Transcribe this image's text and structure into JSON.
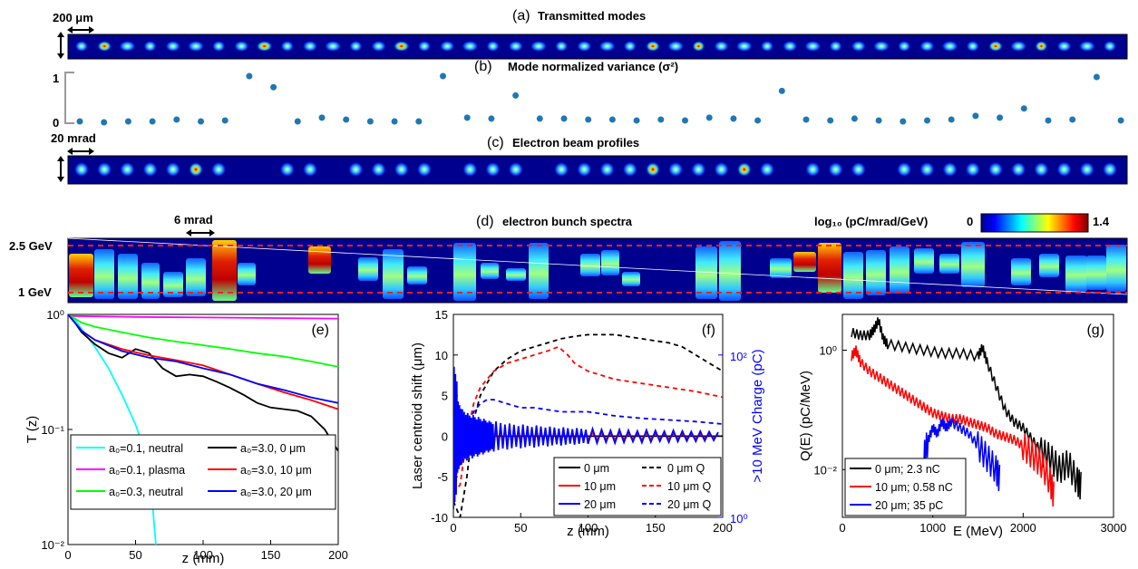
{
  "panels": {
    "a": {
      "letter": "(a)",
      "title": "Transmitted modes",
      "scale_label": "200 μm"
    },
    "b": {
      "letter": "(b)",
      "title": "Mode normalized variance (σ²)",
      "ytick_top": "1",
      "ytick_bottom": "0"
    },
    "c": {
      "letter": "(c)",
      "title": "Electron beam profiles",
      "scale_label": "20 mrad"
    },
    "d": {
      "letter": "(d)",
      "title": "electron bunch spectra",
      "scale_label": "6 mrad",
      "colorbar_label": "log₁₀ (pC/mrad/GeV)",
      "colorbar_min": "0",
      "colorbar_max": "1.4",
      "energy_top": "2.5 GeV",
      "energy_bottom": "1 GeV"
    },
    "e": {
      "letter": "(e)"
    },
    "f": {
      "letter": "(f)"
    },
    "g": {
      "letter": "(g)"
    }
  },
  "colors": {
    "jet_background": "#00008f",
    "cyan": "#00ffff",
    "magenta": "#ff00ff",
    "green": "#00ff00",
    "black": "#000000",
    "red": "#ff0000",
    "blue": "#0000ff",
    "dots": "#1f77b4"
  },
  "chart_data": [
    {
      "id": "b",
      "type": "scatter",
      "title": "Mode normalized variance (σ²)",
      "ylim": [
        0,
        1
      ],
      "yticks": [
        "0",
        "1"
      ],
      "x": [
        1,
        2,
        3,
        4,
        5,
        6,
        7,
        8,
        9,
        10,
        11,
        12,
        13,
        14,
        15,
        16,
        17,
        18,
        19,
        20,
        21,
        22,
        23,
        24,
        25,
        26,
        27,
        28,
        29,
        30,
        31,
        32,
        33,
        34,
        35,
        36,
        37,
        38,
        39,
        40,
        41,
        42,
        43,
        44,
        45,
        46
      ],
      "values": [
        0.02,
        0.0,
        0.02,
        0.02,
        0.06,
        0.02,
        0.04,
        1.0,
        0.76,
        0.02,
        0.1,
        0.06,
        0.02,
        0.02,
        0.02,
        1.0,
        0.1,
        0.08,
        0.58,
        0.08,
        0.08,
        0.06,
        0.06,
        0.04,
        0.06,
        0.04,
        0.1,
        0.08,
        0.04,
        0.68,
        0.06,
        0.04,
        0.08,
        0.04,
        0.02,
        0.04,
        0.06,
        0.14,
        0.1,
        0.3,
        0.04,
        0.06,
        0.98,
        0.04,
        0.08,
        0.02
      ]
    },
    {
      "id": "e",
      "type": "line",
      "xlabel": "z (mm)",
      "ylabel": "T (z)",
      "xlim": [
        0,
        200
      ],
      "ylim": [
        0.01,
        1
      ],
      "yscale": "log",
      "xticks": [
        "0",
        "50",
        "100",
        "150",
        "200"
      ],
      "yticks": [
        "10⁻²",
        "10⁻¹",
        "10⁰"
      ],
      "legend_position": "bottom",
      "series": [
        {
          "name": "a₀=0.1, neutral",
          "color": "#00ffff",
          "x": [
            0,
            5,
            10,
            20,
            30,
            40,
            50,
            60,
            65
          ],
          "y": [
            1,
            0.9,
            0.75,
            0.52,
            0.34,
            0.2,
            0.11,
            0.05,
            0.01
          ]
        },
        {
          "name": "a₀=0.1, plasma",
          "color": "#ff00ff",
          "x": [
            0,
            50,
            100,
            150,
            200
          ],
          "y": [
            0.97,
            0.95,
            0.94,
            0.93,
            0.92
          ]
        },
        {
          "name": "a₀=0.3, neutral",
          "color": "#00ff00",
          "x": [
            0,
            10,
            20,
            40,
            60,
            80,
            100,
            120,
            140,
            160,
            180,
            200
          ],
          "y": [
            1,
            0.85,
            0.78,
            0.7,
            0.63,
            0.58,
            0.54,
            0.5,
            0.46,
            0.43,
            0.39,
            0.35
          ]
        },
        {
          "name": "a₀=3.0, 0 μm",
          "color": "#000000",
          "x": [
            0,
            5,
            10,
            20,
            30,
            40,
            50,
            60,
            70,
            80,
            90,
            100,
            110,
            120,
            130,
            140,
            150,
            160,
            170,
            180,
            190,
            200
          ],
          "y": [
            1,
            0.85,
            0.7,
            0.55,
            0.46,
            0.42,
            0.5,
            0.46,
            0.34,
            0.29,
            0.3,
            0.29,
            0.26,
            0.23,
            0.2,
            0.17,
            0.155,
            0.15,
            0.145,
            0.13,
            0.1,
            0.065
          ]
        },
        {
          "name": "a₀=3.0, 10 μm",
          "color": "#ff0000",
          "x": [
            0,
            10,
            20,
            40,
            60,
            80,
            100,
            120,
            140,
            160,
            180,
            200
          ],
          "y": [
            1,
            0.72,
            0.6,
            0.5,
            0.44,
            0.4,
            0.36,
            0.3,
            0.25,
            0.21,
            0.18,
            0.15
          ]
        },
        {
          "name": "a₀=3.0, 20 μm",
          "color": "#0000ff",
          "x": [
            0,
            10,
            20,
            40,
            60,
            80,
            100,
            120,
            140,
            160,
            180,
            200
          ],
          "y": [
            1,
            0.72,
            0.6,
            0.48,
            0.42,
            0.39,
            0.34,
            0.3,
            0.25,
            0.22,
            0.19,
            0.17
          ]
        }
      ]
    },
    {
      "id": "f",
      "type": "line",
      "xlabel": "z (mm)",
      "ylabel": "Laser centroid shift (μm)",
      "y2label": ">10 MeV Charge (pC)",
      "xlim": [
        0,
        200
      ],
      "ylim": [
        -10,
        15
      ],
      "y2lim_log": [
        0,
        2.5
      ],
      "xticks": [
        "0",
        "50",
        "100",
        "150",
        "200"
      ],
      "yticks": [
        "-10",
        "-5",
        "0",
        "5",
        "10",
        "15"
      ],
      "y2ticks": [
        "10⁰",
        "10²"
      ],
      "legend_position": "bottom-right",
      "series": [
        {
          "name": "0 μm",
          "color": "#000000",
          "style": "solid",
          "axis": "left",
          "x": [
            0,
            10,
            20,
            30,
            40,
            50,
            60,
            80,
            100,
            120,
            140,
            160,
            180,
            200
          ],
          "y": [
            0,
            0,
            0,
            0,
            0,
            0,
            0,
            0,
            0,
            0,
            0,
            0,
            0,
            0
          ]
        },
        {
          "name": "0 μm Q",
          "color": "#000000",
          "style": "dashed",
          "axis": "left",
          "x": [
            0,
            5,
            10,
            15,
            20,
            30,
            40,
            50,
            60,
            70,
            80,
            90,
            100,
            120,
            140,
            160,
            170,
            180,
            190,
            200
          ],
          "y": [
            -8,
            -10,
            -5,
            2,
            5,
            8,
            9.5,
            10.5,
            11,
            11.5,
            12,
            12.3,
            12.5,
            12.5,
            12,
            11.5,
            11,
            10,
            9,
            8
          ]
        },
        {
          "name": "10 μm",
          "color": "#ff0000",
          "style": "solid",
          "axis": "left",
          "x": [
            0,
            5,
            10,
            15,
            20,
            25,
            30,
            40,
            50,
            60,
            70,
            80,
            90,
            100,
            120,
            140,
            160,
            180,
            200
          ],
          "y": [
            0,
            -2,
            3,
            -1.5,
            1.5,
            -1,
            1,
            -0.8,
            0.8,
            -0.6,
            0.7,
            -0.5,
            0.6,
            -0.5,
            0.4,
            -0.4,
            0.4,
            -0.3,
            0.3
          ]
        },
        {
          "name": "10 μm Q",
          "color": "#ff0000",
          "style": "dashed",
          "axis": "left",
          "x": [
            0,
            5,
            10,
            15,
            20,
            30,
            40,
            50,
            60,
            70,
            78,
            85,
            90,
            100,
            120,
            140,
            160,
            180,
            200
          ],
          "y": [
            -7,
            -6,
            0,
            4,
            6,
            8,
            9,
            9.5,
            10,
            10.5,
            11,
            10,
            9,
            8,
            7,
            6.5,
            6,
            5.5,
            4.8
          ]
        },
        {
          "name": "20 μm",
          "color": "#0000ff",
          "style": "solid",
          "axis": "left",
          "x": [
            0,
            3,
            6,
            10,
            14,
            18,
            22,
            26,
            30,
            40,
            50,
            60,
            70,
            80,
            90,
            100,
            120,
            140,
            160,
            180,
            200
          ],
          "y": [
            13,
            -5,
            4,
            -3,
            3,
            -2.5,
            2.5,
            -2,
            2,
            -1.8,
            1.5,
            -1.5,
            1.3,
            -1.2,
            1.1,
            -1,
            0.9,
            -0.8,
            0.8,
            -0.7,
            0.6
          ]
        },
        {
          "name": "20 μm Q",
          "color": "#0000ff",
          "style": "dashed",
          "axis": "left",
          "x": [
            0,
            5,
            10,
            15,
            20,
            25,
            30,
            40,
            50,
            60,
            80,
            100,
            120,
            140,
            160,
            180,
            200
          ],
          "y": [
            -6,
            -3,
            1,
            3,
            4,
            4.5,
            4.5,
            4,
            3.5,
            3.5,
            3,
            3,
            2.5,
            2.2,
            2,
            1.8,
            1.5
          ]
        }
      ]
    },
    {
      "id": "g",
      "type": "line",
      "xlabel": "E (MeV)",
      "ylabel": "Q(E) (pC/MeV)",
      "xlim": [
        0,
        3000
      ],
      "ylim_log": [
        -2.8,
        0.6
      ],
      "yscale": "log",
      "xticks": [
        "0",
        "1000",
        "2000",
        "3000"
      ],
      "yticks": [
        "10⁻²",
        "10⁰"
      ],
      "legend_position": "bottom-left",
      "series": [
        {
          "name": "0 μm; 2.3 nC",
          "color": "#000000",
          "x": [
            100,
            200,
            300,
            350,
            400,
            450,
            500,
            700,
            900,
            1100,
            1300,
            1500,
            1550,
            1600,
            1700,
            1800,
            1900,
            2000,
            2100,
            2200,
            2300,
            2400,
            2500,
            2600,
            2650
          ],
          "y": [
            0.3,
            0.25,
            0.25,
            0.35,
            0.5,
            0.2,
            0.1,
            0.05,
            0,
            -0.05,
            -0.05,
            -0.1,
            0.05,
            -0.2,
            -0.6,
            -1.0,
            -1.2,
            -1.3,
            -1.5,
            -1.7,
            -1.8,
            -2.0,
            -1.9,
            -2.2,
            -2.3
          ]
        },
        {
          "name": "10 μm; 0.58 nC",
          "color": "#ff0000",
          "x": [
            100,
            150,
            200,
            300,
            400,
            500,
            600,
            700,
            800,
            900,
            1000,
            1100,
            1200,
            1300,
            1400,
            1500,
            1600,
            1700,
            1800,
            1900,
            2000,
            2100,
            2200,
            2300,
            2350
          ],
          "y": [
            -0.1,
            0.0,
            -0.2,
            -0.35,
            -0.45,
            -0.55,
            -0.65,
            -0.75,
            -0.85,
            -0.95,
            -1.05,
            -1.1,
            -1.15,
            -1.15,
            -1.2,
            -1.25,
            -1.3,
            -1.4,
            -1.45,
            -1.5,
            -1.6,
            -1.75,
            -1.9,
            -2.2,
            -2.5
          ]
        },
        {
          "name": "20 μm; 35 pC",
          "color": "#0000ff",
          "x": [
            900,
            950,
            1000,
            1050,
            1100,
            1150,
            1200,
            1300,
            1400,
            1500,
            1600,
            1700,
            1750
          ],
          "y": [
            -1.8,
            -1.5,
            -1.3,
            -1.4,
            -1.2,
            -1.3,
            -1.2,
            -1.3,
            -1.4,
            -1.6,
            -1.8,
            -2.0,
            -2.2
          ]
        }
      ]
    }
  ]
}
